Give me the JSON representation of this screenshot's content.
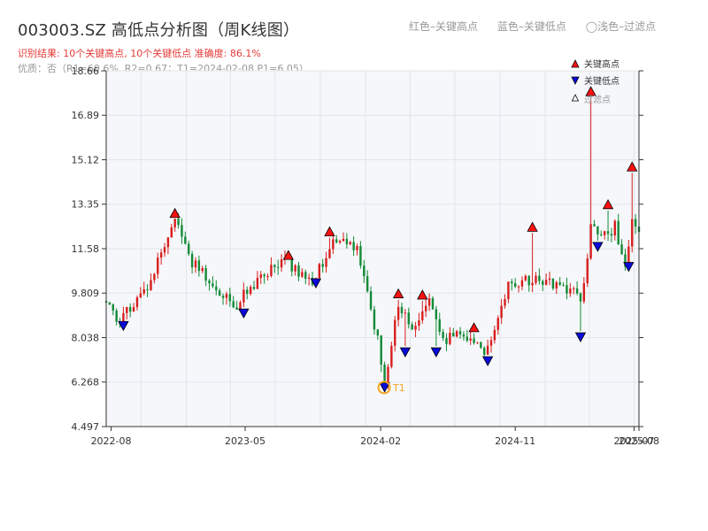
{
  "header": {
    "title": "003003.SZ 高低点分析图（周K线图）",
    "result": "识别结果: 10个关键高点, 10个关键低点   准确度: 86.1%",
    "quality": "优质：否（R1=60.6%, R2=0.67；T1=2024-02-08 P1=6.05）"
  },
  "top_legend": {
    "red": "红色–关键高点",
    "blue": "蓝色–关键低点",
    "light": "◯浅色–过滤点"
  },
  "legend": {
    "high": "关键高点",
    "low": "关键低点",
    "filtered": "过滤点"
  },
  "colors": {
    "up": "#d81e1e",
    "down": "#138a36",
    "high_marker": "#ff1111",
    "low_marker": "#0a0adc",
    "t1": "#f5a623",
    "plot_bg": "#f5f7fa",
    "grid": "#e1e5ea"
  },
  "chart_data": {
    "type": "candlestick",
    "frequency": "weekly",
    "x_range": [
      "2022-07-22",
      "2025-07-11"
    ],
    "x_ticks": [
      "2022-08",
      "2023-05",
      "2024-02",
      "2024-11",
      "2025-07",
      "2025-08"
    ],
    "ylim": [
      4.497,
      18.66
    ],
    "y_ticks": [
      4.497,
      6.268,
      8.038,
      9.809,
      11.58,
      13.35,
      15.12,
      16.89,
      18.66
    ],
    "anchors": [
      {
        "date": "2022-07-22",
        "price": 9.5
      },
      {
        "date": "2022-08-19",
        "price": 8.7
      },
      {
        "date": "2022-10-14",
        "price": 10.0
      },
      {
        "date": "2022-12-09",
        "price": 12.7
      },
      {
        "date": "2023-01-13",
        "price": 11.0
      },
      {
        "date": "2023-04-14",
        "price": 9.3
      },
      {
        "date": "2023-05-12",
        "price": 10.1
      },
      {
        "date": "2023-07-21",
        "price": 11.1
      },
      {
        "date": "2023-09-15",
        "price": 10.3
      },
      {
        "date": "2023-10-27",
        "price": 11.9
      },
      {
        "date": "2023-12-15",
        "price": 11.6
      },
      {
        "date": "2024-01-26",
        "price": 8.0
      },
      {
        "date": "2024-02-09",
        "price": 6.3
      },
      {
        "date": "2024-03-08",
        "price": 9.5
      },
      {
        "date": "2024-04-05",
        "price": 8.2
      },
      {
        "date": "2024-05-10",
        "price": 9.4
      },
      {
        "date": "2024-06-07",
        "price": 8.0
      },
      {
        "date": "2024-08-02",
        "price": 8.1
      },
      {
        "date": "2024-08-30",
        "price": 7.3
      },
      {
        "date": "2024-10-18",
        "price": 10.2
      },
      {
        "date": "2024-12-13",
        "price": 10.3
      },
      {
        "date": "2025-02-28",
        "price": 9.9
      },
      {
        "date": "2025-03-14",
        "price": 9.4
      },
      {
        "date": "2025-04-04",
        "price": 12.4
      },
      {
        "date": "2025-04-25",
        "price": 11.9
      },
      {
        "date": "2025-05-23",
        "price": 12.5
      },
      {
        "date": "2025-06-13",
        "price": 11.0
      },
      {
        "date": "2025-06-27",
        "price": 12.6
      },
      {
        "date": "2025-07-11",
        "price": 12.4
      }
    ],
    "key_highs": [
      {
        "date": "2022-12-09",
        "price": 12.75
      },
      {
        "date": "2023-07-28",
        "price": 11.08
      },
      {
        "date": "2023-10-20",
        "price": 12.02
      },
      {
        "date": "2024-03-08",
        "price": 9.55
      },
      {
        "date": "2024-04-26",
        "price": 9.5
      },
      {
        "date": "2024-08-09",
        "price": 8.2
      },
      {
        "date": "2024-12-06",
        "price": 12.2
      },
      {
        "date": "2025-04-04",
        "price": 17.6
      },
      {
        "date": "2025-05-09",
        "price": 13.1
      },
      {
        "date": "2025-06-27",
        "price": 14.6
      }
    ],
    "key_lows": [
      {
        "date": "2022-08-26",
        "price": 8.75
      },
      {
        "date": "2023-04-28",
        "price": 9.25
      },
      {
        "date": "2023-09-22",
        "price": 10.45
      },
      {
        "date": "2024-02-09",
        "price": 6.3
      },
      {
        "date": "2024-03-22",
        "price": 7.7
      },
      {
        "date": "2024-05-24",
        "price": 7.7
      },
      {
        "date": "2024-09-06",
        "price": 7.35
      },
      {
        "date": "2025-03-14",
        "price": 8.3
      },
      {
        "date": "2025-04-18",
        "price": 11.9
      },
      {
        "date": "2025-06-20",
        "price": 11.1
      }
    ],
    "t1": {
      "label": "T1",
      "date": "2024-02-08",
      "price": 6.05
    },
    "legend": [
      "关键高点",
      "关键低点",
      "过滤点"
    ],
    "legend_position": "top-right",
    "grid": true
  }
}
